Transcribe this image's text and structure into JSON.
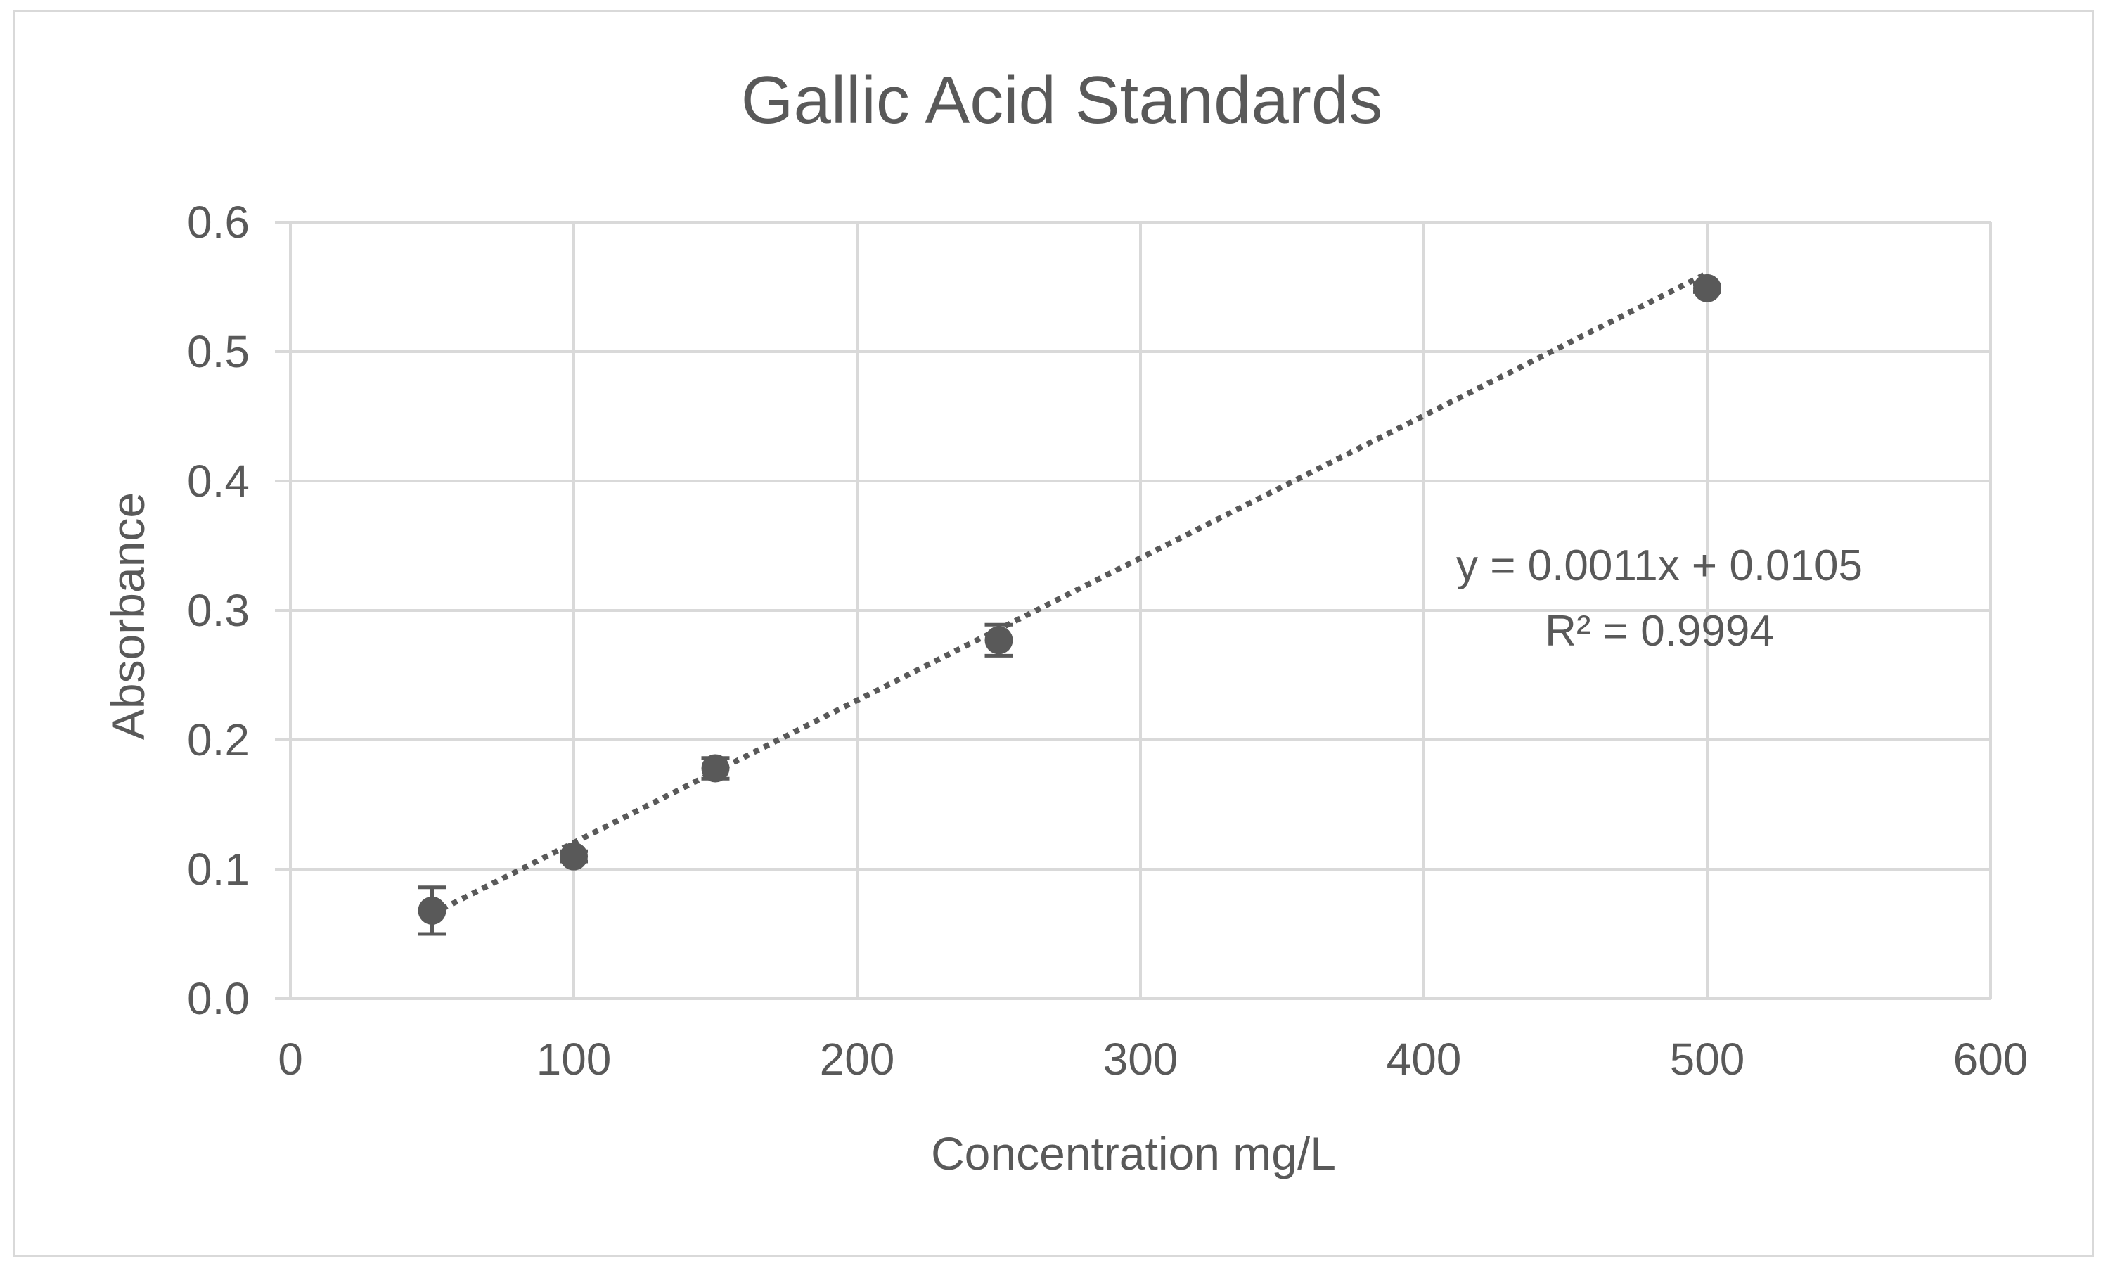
{
  "chart_data": {
    "type": "scatter",
    "title": "Gallic Acid Standards",
    "xlabel": "Concentration mg/L",
    "ylabel": "Absorbance",
    "xlim": [
      0,
      600
    ],
    "ylim": [
      0,
      0.6
    ],
    "x_ticks": [
      "0",
      "100",
      "200",
      "300",
      "400",
      "500",
      "600"
    ],
    "y_ticks": [
      "0.0",
      "0.1",
      "0.2",
      "0.3",
      "0.4",
      "0.5",
      "0.6"
    ],
    "grid": true,
    "legend": "none",
    "series": [
      {
        "x": [
          50,
          100,
          150,
          250,
          500
        ],
        "y": [
          0.068,
          0.11,
          0.178,
          0.277,
          0.549
        ],
        "error": [
          0.018,
          0.004,
          0.008,
          0.012,
          0.003
        ],
        "color": "#595959"
      }
    ],
    "trendline": {
      "type": "linear",
      "slope": 0.0011,
      "intercept": 0.0105,
      "x_range": [
        50,
        500
      ],
      "style": "dotted",
      "color": "#595959"
    },
    "annotations": {
      "equation": "y = 0.0011x + 0.0105",
      "r_squared": "R² = 0.9994"
    }
  }
}
